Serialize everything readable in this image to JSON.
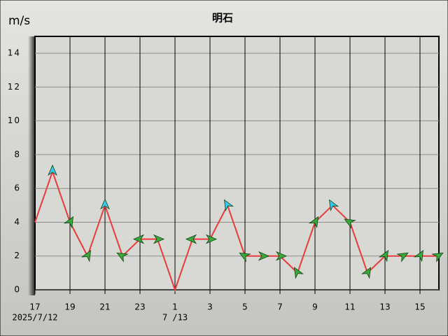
{
  "chart_data": {
    "type": "line",
    "title": "明石",
    "y_unit": "m/s",
    "categories": [
      "17",
      null,
      "19",
      null,
      "21",
      null,
      "23",
      null,
      "1",
      null,
      "3",
      null,
      "5",
      null,
      "7",
      null,
      "9",
      null,
      "11",
      null,
      "13",
      null,
      "15",
      null
    ],
    "date_labels": [
      "2025/7/12",
      "7 /13"
    ],
    "series": [
      {
        "color": "#e83c3c",
        "values": [
          4,
          7,
          4,
          2,
          5,
          2,
          3,
          3,
          0,
          3,
          3,
          5,
          2,
          2,
          2,
          1,
          4,
          5,
          4,
          1,
          2,
          2,
          2,
          2
        ],
        "directions": [
          null,
          0,
          30,
          30,
          0,
          300,
          270,
          90,
          null,
          270,
          90,
          330,
          300,
          90,
          90,
          330,
          30,
          330,
          300,
          30,
          30,
          60,
          30,
          60
        ]
      }
    ],
    "arrow_color": "#3aa83a",
    "arrow_color_strong": "#38c8ee",
    "strong_threshold": 5,
    "ylim": [
      0,
      15
    ],
    "yticks": [
      0,
      2,
      4,
      6,
      8,
      10,
      12,
      14
    ],
    "grid": true
  }
}
